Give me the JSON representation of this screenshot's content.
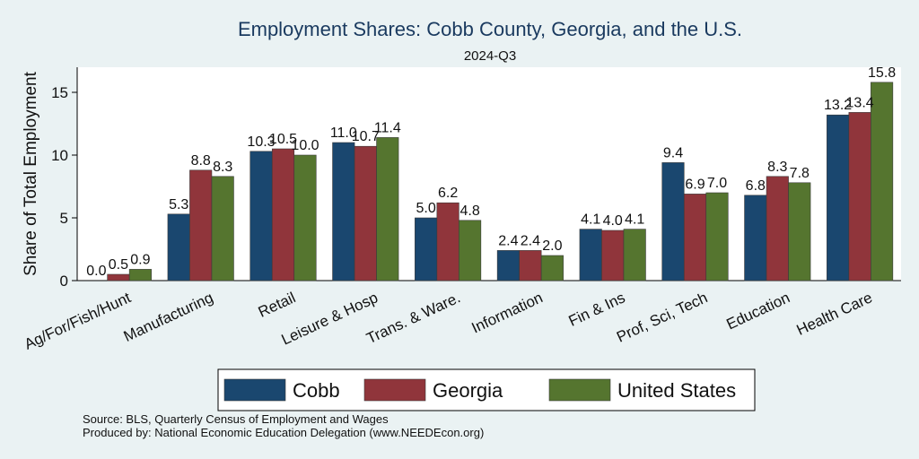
{
  "chart_data": {
    "type": "bar",
    "title": "Employment Shares: Cobb County, Georgia, and the U.S.",
    "subtitle": "2024-Q3",
    "ylabel": "Share of Total Employment",
    "xlabel": "",
    "ylim": [
      0,
      17
    ],
    "yticks": [
      0,
      5,
      10,
      15
    ],
    "grid": false,
    "legend_position": "bottom",
    "categories": [
      "Ag/For/Fish/Hunt",
      "Manufacturing",
      "Retail",
      "Leisure & Hosp",
      "Trans. & Ware.",
      "Information",
      "Fin & Ins",
      "Prof, Sci, Tech",
      "Education",
      "Health Care"
    ],
    "series": [
      {
        "name": "Cobb",
        "color": "#1a476f",
        "values": [
          0.0,
          5.3,
          10.3,
          11.0,
          5.0,
          2.4,
          4.1,
          9.4,
          6.8,
          13.2
        ]
      },
      {
        "name": "Georgia",
        "color": "#90353b",
        "values": [
          0.5,
          8.8,
          10.5,
          10.7,
          6.2,
          2.4,
          4.0,
          6.9,
          8.3,
          13.4
        ]
      },
      {
        "name": "United States",
        "color": "#55752f",
        "values": [
          0.9,
          8.3,
          10.0,
          11.4,
          4.8,
          2.0,
          4.1,
          7.0,
          7.8,
          15.8
        ]
      }
    ],
    "notes": [
      "Source: BLS, Quarterly Census of Employment and Wages",
      "Produced by: National Economic Education Delegation (www.NEEDEcon.org)"
    ]
  }
}
